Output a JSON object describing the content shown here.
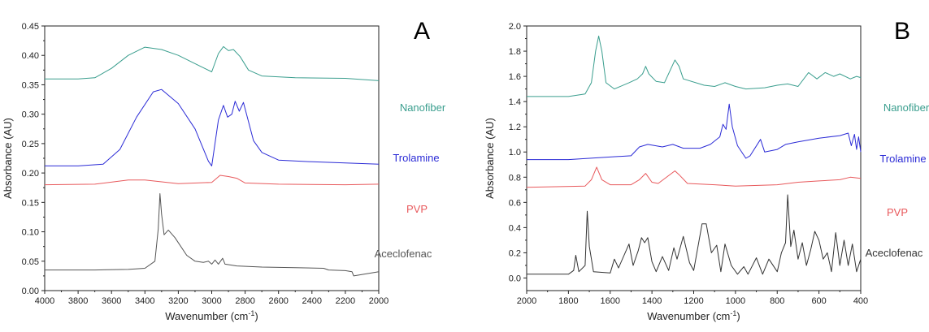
{
  "chart_data": [
    {
      "type": "line",
      "panel_label": "A",
      "xlabel": "Wavenumber (cm",
      "xlabel_sup": "-1",
      "xlabel_end": ")",
      "ylabel": "Absorbance (AU)",
      "xlim": [
        4000,
        2000
      ],
      "ylim": [
        0,
        0.45
      ],
      "x_ticks": [
        "4000",
        "3800",
        "3600",
        "3400",
        "3200",
        "3000",
        "2800",
        "2600",
        "2400",
        "2200",
        "2000"
      ],
      "y_ticks": [
        "0.00",
        "0.05",
        "0.10",
        "0.15",
        "0.20",
        "0.25",
        "0.30",
        "0.35",
        "0.40",
        "0.45"
      ],
      "series": [
        {
          "name": "Nanofiber",
          "color": "#3a9e8e",
          "label_at": [
            0.36,
            0.36
          ],
          "points": [
            [
              4000,
              0.36
            ],
            [
              3800,
              0.36
            ],
            [
              3700,
              0.362
            ],
            [
              3600,
              0.378
            ],
            [
              3500,
              0.4
            ],
            [
              3400,
              0.414
            ],
            [
              3300,
              0.41
            ],
            [
              3200,
              0.4
            ],
            [
              3100,
              0.386
            ],
            [
              3000,
              0.372
            ],
            [
              2960,
              0.403
            ],
            [
              2930,
              0.415
            ],
            [
              2900,
              0.408
            ],
            [
              2870,
              0.41
            ],
            [
              2830,
              0.398
            ],
            [
              2780,
              0.375
            ],
            [
              2700,
              0.365
            ],
            [
              2500,
              0.362
            ],
            [
              2200,
              0.361
            ],
            [
              2000,
              0.357
            ]
          ]
        },
        {
          "name": "Trolamine",
          "color": "#2b2bd6",
          "label_at": [
            0.36,
            0.27
          ],
          "points": [
            [
              4000,
              0.212
            ],
            [
              3800,
              0.212
            ],
            [
              3650,
              0.215
            ],
            [
              3550,
              0.24
            ],
            [
              3450,
              0.295
            ],
            [
              3350,
              0.338
            ],
            [
              3300,
              0.342
            ],
            [
              3200,
              0.318
            ],
            [
              3100,
              0.275
            ],
            [
              3020,
              0.22
            ],
            [
              3000,
              0.212
            ],
            [
              2960,
              0.29
            ],
            [
              2930,
              0.315
            ],
            [
              2905,
              0.295
            ],
            [
              2880,
              0.3
            ],
            [
              2860,
              0.322
            ],
            [
              2835,
              0.305
            ],
            [
              2810,
              0.32
            ],
            [
              2790,
              0.298
            ],
            [
              2750,
              0.255
            ],
            [
              2700,
              0.235
            ],
            [
              2600,
              0.222
            ],
            [
              2400,
              0.219
            ],
            [
              2200,
              0.217
            ],
            [
              2000,
              0.215
            ]
          ]
        },
        {
          "name": "PVP",
          "color": "#e8595c",
          "label_at": [
            0.45,
            0.183
          ],
          "points": [
            [
              4000,
              0.18
            ],
            [
              3700,
              0.181
            ],
            [
              3500,
              0.188
            ],
            [
              3400,
              0.188
            ],
            [
              3200,
              0.182
            ],
            [
              3000,
              0.184
            ],
            [
              2950,
              0.196
            ],
            [
              2900,
              0.194
            ],
            [
              2850,
              0.191
            ],
            [
              2800,
              0.183
            ],
            [
              2600,
              0.181
            ],
            [
              2200,
              0.18
            ],
            [
              2000,
              0.181
            ]
          ]
        },
        {
          "name": "Aceclofenac",
          "color": "#555555",
          "label_at": [
            0.12,
            0.1
          ],
          "points": [
            [
              4000,
              0.035
            ],
            [
              3700,
              0.035
            ],
            [
              3500,
              0.036
            ],
            [
              3400,
              0.038
            ],
            [
              3340,
              0.05
            ],
            [
              3320,
              0.105
            ],
            [
              3310,
              0.165
            ],
            [
              3300,
              0.13
            ],
            [
              3285,
              0.095
            ],
            [
              3260,
              0.103
            ],
            [
              3220,
              0.09
            ],
            [
              3150,
              0.06
            ],
            [
              3100,
              0.05
            ],
            [
              3050,
              0.048
            ],
            [
              3020,
              0.05
            ],
            [
              3000,
              0.045
            ],
            [
              2980,
              0.052
            ],
            [
              2960,
              0.045
            ],
            [
              2935,
              0.055
            ],
            [
              2920,
              0.045
            ],
            [
              2850,
              0.042
            ],
            [
              2700,
              0.04
            ],
            [
              2500,
              0.039
            ],
            [
              2330,
              0.038
            ],
            [
              2300,
              0.035
            ],
            [
              2200,
              0.034
            ],
            [
              2160,
              0.032
            ],
            [
              2150,
              0.025
            ],
            [
              2000,
              0.032
            ]
          ]
        }
      ]
    },
    {
      "type": "line",
      "panel_label": "B",
      "xlabel": "Wavenumber (cm",
      "xlabel_sup": "-1",
      "xlabel_end": ")",
      "ylabel": "Absorbance (AU)",
      "xlim": [
        2000,
        400
      ],
      "ylim": [
        -0.1,
        2.0
      ],
      "x_ticks": [
        "2000",
        "1800",
        "1600",
        "1400",
        "1200",
        "1000",
        "800",
        "600",
        "400"
      ],
      "y_ticks": [
        "0.0",
        "0.2",
        "0.4",
        "0.6",
        "0.8",
        "1.0",
        "1.2",
        "1.4",
        "1.6",
        "1.8",
        "2.0"
      ],
      "series": [
        {
          "name": "Nanofiber",
          "color": "#3a9e8e",
          "label_at": [
            410,
            1.47
          ],
          "points": [
            [
              2000,
              1.44
            ],
            [
              1800,
              1.44
            ],
            [
              1720,
              1.46
            ],
            [
              1690,
              1.55
            ],
            [
              1670,
              1.8
            ],
            [
              1655,
              1.92
            ],
            [
              1640,
              1.8
            ],
            [
              1620,
              1.55
            ],
            [
              1580,
              1.5
            ],
            [
              1510,
              1.55
            ],
            [
              1470,
              1.58
            ],
            [
              1445,
              1.62
            ],
            [
              1430,
              1.68
            ],
            [
              1415,
              1.62
            ],
            [
              1380,
              1.56
            ],
            [
              1340,
              1.55
            ],
            [
              1290,
              1.73
            ],
            [
              1270,
              1.68
            ],
            [
              1250,
              1.58
            ],
            [
              1150,
              1.53
            ],
            [
              1100,
              1.52
            ],
            [
              1050,
              1.55
            ],
            [
              1000,
              1.52
            ],
            [
              950,
              1.5
            ],
            [
              860,
              1.51
            ],
            [
              800,
              1.53
            ],
            [
              750,
              1.54
            ],
            [
              700,
              1.52
            ],
            [
              650,
              1.63
            ],
            [
              610,
              1.58
            ],
            [
              570,
              1.63
            ],
            [
              530,
              1.6
            ],
            [
              500,
              1.62
            ],
            [
              450,
              1.58
            ],
            [
              420,
              1.6
            ],
            [
              400,
              1.59
            ]
          ]
        },
        {
          "name": "Trolamine",
          "color": "#2b2bd6",
          "label_at": [
            400,
            1.02
          ],
          "points": [
            [
              2000,
              0.94
            ],
            [
              1800,
              0.94
            ],
            [
              1600,
              0.96
            ],
            [
              1500,
              0.97
            ],
            [
              1460,
              1.04
            ],
            [
              1420,
              1.06
            ],
            [
              1350,
              1.04
            ],
            [
              1300,
              1.06
            ],
            [
              1250,
              1.03
            ],
            [
              1170,
              1.03
            ],
            [
              1120,
              1.06
            ],
            [
              1075,
              1.12
            ],
            [
              1060,
              1.22
            ],
            [
              1045,
              1.18
            ],
            [
              1030,
              1.38
            ],
            [
              1015,
              1.2
            ],
            [
              990,
              1.05
            ],
            [
              950,
              0.95
            ],
            [
              930,
              0.97
            ],
            [
              880,
              1.1
            ],
            [
              860,
              1.0
            ],
            [
              800,
              1.02
            ],
            [
              760,
              1.06
            ],
            [
              700,
              1.08
            ],
            [
              600,
              1.11
            ],
            [
              500,
              1.13
            ],
            [
              460,
              1.15
            ],
            [
              445,
              1.05
            ],
            [
              430,
              1.14
            ],
            [
              420,
              1.02
            ],
            [
              410,
              1.12
            ],
            [
              400,
              1.0
            ]
          ]
        },
        {
          "name": "PVP",
          "color": "#e8595c",
          "label_at": [
            400,
            0.76
          ],
          "points": [
            [
              2000,
              0.72
            ],
            [
              1720,
              0.73
            ],
            [
              1690,
              0.78
            ],
            [
              1665,
              0.88
            ],
            [
              1640,
              0.78
            ],
            [
              1600,
              0.74
            ],
            [
              1500,
              0.74
            ],
            [
              1460,
              0.78
            ],
            [
              1430,
              0.83
            ],
            [
              1400,
              0.76
            ],
            [
              1370,
              0.75
            ],
            [
              1290,
              0.85
            ],
            [
              1270,
              0.82
            ],
            [
              1230,
              0.75
            ],
            [
              1100,
              0.74
            ],
            [
              1000,
              0.73
            ],
            [
              800,
              0.74
            ],
            [
              700,
              0.76
            ],
            [
              600,
              0.77
            ],
            [
              500,
              0.78
            ],
            [
              450,
              0.8
            ],
            [
              400,
              0.79
            ]
          ]
        },
        {
          "name": "Aceclofenac",
          "color": "#333333",
          "label_at": [
            400,
            0.21
          ],
          "points": [
            [
              2000,
              0.03
            ],
            [
              1800,
              0.03
            ],
            [
              1775,
              0.06
            ],
            [
              1765,
              0.18
            ],
            [
              1750,
              0.05
            ],
            [
              1720,
              0.1
            ],
            [
              1710,
              0.53
            ],
            [
              1700,
              0.25
            ],
            [
              1680,
              0.05
            ],
            [
              1600,
              0.04
            ],
            [
              1580,
              0.15
            ],
            [
              1560,
              0.08
            ],
            [
              1510,
              0.27
            ],
            [
              1490,
              0.1
            ],
            [
              1465,
              0.22
            ],
            [
              1450,
              0.32
            ],
            [
              1435,
              0.28
            ],
            [
              1420,
              0.32
            ],
            [
              1400,
              0.13
            ],
            [
              1380,
              0.05
            ],
            [
              1350,
              0.17
            ],
            [
              1320,
              0.06
            ],
            [
              1295,
              0.24
            ],
            [
              1280,
              0.15
            ],
            [
              1250,
              0.33
            ],
            [
              1220,
              0.12
            ],
            [
              1200,
              0.06
            ],
            [
              1160,
              0.43
            ],
            [
              1140,
              0.43
            ],
            [
              1115,
              0.2
            ],
            [
              1090,
              0.26
            ],
            [
              1070,
              0.05
            ],
            [
              1050,
              0.27
            ],
            [
              1020,
              0.1
            ],
            [
              990,
              0.03
            ],
            [
              960,
              0.09
            ],
            [
              940,
              0.03
            ],
            [
              900,
              0.16
            ],
            [
              870,
              0.03
            ],
            [
              840,
              0.15
            ],
            [
              800,
              0.05
            ],
            [
              780,
              0.2
            ],
            [
              760,
              0.28
            ],
            [
              750,
              0.66
            ],
            [
              735,
              0.25
            ],
            [
              720,
              0.38
            ],
            [
              700,
              0.15
            ],
            [
              680,
              0.28
            ],
            [
              660,
              0.1
            ],
            [
              640,
              0.22
            ],
            [
              620,
              0.37
            ],
            [
              600,
              0.3
            ],
            [
              580,
              0.15
            ],
            [
              560,
              0.2
            ],
            [
              540,
              0.05
            ],
            [
              520,
              0.36
            ],
            [
              500,
              0.1
            ],
            [
              480,
              0.3
            ],
            [
              460,
              0.1
            ],
            [
              440,
              0.27
            ],
            [
              420,
              0.05
            ],
            [
              400,
              0.15
            ]
          ]
        }
      ]
    }
  ]
}
